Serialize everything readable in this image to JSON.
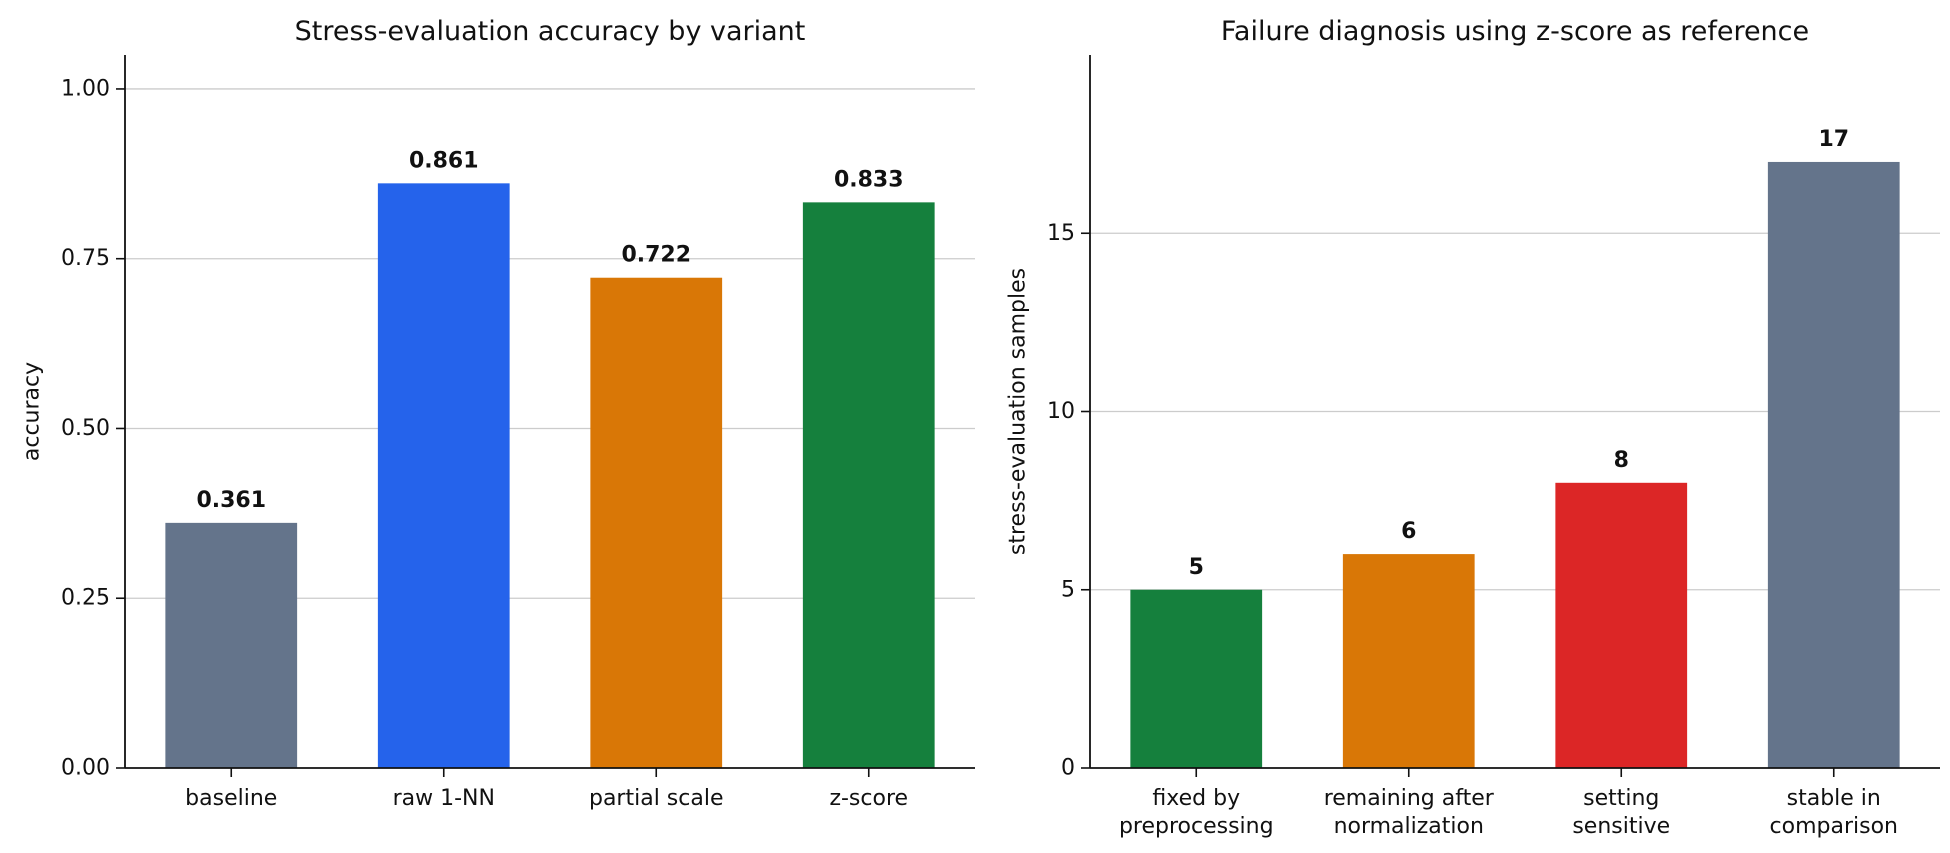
{
  "chart_data": [
    {
      "type": "bar",
      "title": "Stress-evaluation accuracy by variant",
      "xlabel": "",
      "ylabel": "accuracy",
      "categories": [
        [
          "baseline"
        ],
        [
          "raw 1-NN"
        ],
        [
          "partial scale"
        ],
        [
          "z-score"
        ]
      ],
      "values": [
        0.361,
        0.861,
        0.722,
        0.833
      ],
      "value_labels": [
        "0.361",
        "0.861",
        "0.722",
        "0.833"
      ],
      "colors": [
        "#64748b",
        "#2563eb",
        "#d97706",
        "#15803d"
      ],
      "ylim": [
        0,
        1.05
      ],
      "yticks": [
        0,
        0.25,
        0.5,
        0.75,
        1.0
      ],
      "ytick_labels": [
        "0.00",
        "0.25",
        "0.50",
        "0.75",
        "1.00"
      ],
      "grid": "y",
      "legend": "none"
    },
    {
      "type": "bar",
      "title": "Failure diagnosis using z-score as reference",
      "xlabel": "",
      "ylabel": "stress-evaluation samples",
      "categories": [
        [
          "fixed by",
          "preprocessing"
        ],
        [
          "remaining after",
          "normalization"
        ],
        [
          "setting",
          "sensitive"
        ],
        [
          "stable in",
          "comparison"
        ]
      ],
      "values": [
        5,
        6,
        8,
        17
      ],
      "value_labels": [
        "5",
        "6",
        "8",
        "17"
      ],
      "colors": [
        "#15803d",
        "#d97706",
        "#dc2626",
        "#64748b"
      ],
      "ylim": [
        0,
        20
      ],
      "yticks": [
        0,
        5,
        10,
        15
      ],
      "ytick_labels": [
        "0",
        "5",
        "10",
        "15"
      ],
      "grid": "y",
      "legend": "none"
    }
  ]
}
